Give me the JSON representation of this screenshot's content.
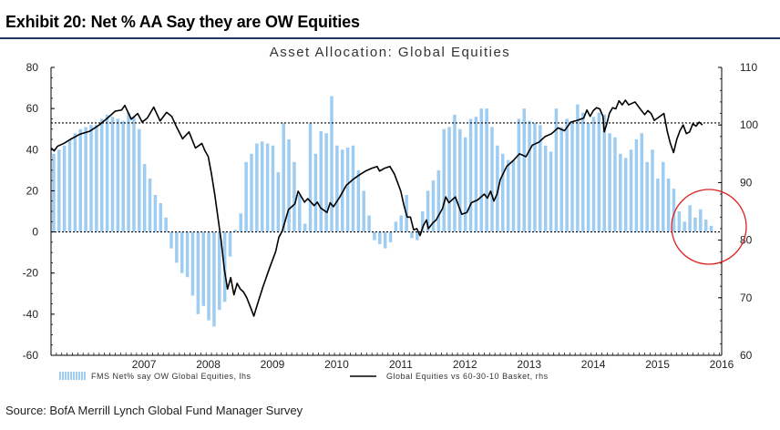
{
  "header": {
    "title": "Exhibit 20: Net % AA Say they are OW Equities"
  },
  "source": "Source: BofA Merrill Lynch Global Fund Manager Survey",
  "colors": {
    "bars": "#9fcdf2",
    "line": "#000000",
    "circle": "#e02020",
    "rule": "#1f3864"
  },
  "chart_data": {
    "type": "bar",
    "title": "Asset Allocation: Global Equities",
    "x_ticks": [
      "2007",
      "2008",
      "2009",
      "2010",
      "2011",
      "2012",
      "2013",
      "2014",
      "2015",
      "2016"
    ],
    "y_left": {
      "ylim": [
        -60,
        80
      ],
      "ticks": [
        "80",
        "60",
        "40",
        "20",
        "0",
        "-20",
        "-40",
        "-60"
      ]
    },
    "y_right": {
      "ylim": [
        60,
        110
      ],
      "ticks": [
        "110",
        "100",
        "90",
        "80",
        "70",
        "60"
      ]
    },
    "reference_lines": [
      {
        "axis": "left",
        "value": 0
      },
      {
        "axis": "left",
        "value": 53
      }
    ],
    "annotation": "circle around latest readings (early 2016)",
    "series": [
      {
        "name": "FMS Net% say OW Global Equities, lhs",
        "type": "bar",
        "axis": "left",
        "start": 2006.0,
        "step": 0.0833,
        "values": [
          38,
          40,
          42,
          45,
          48,
          50,
          51,
          52,
          52,
          55,
          57,
          56,
          55,
          54,
          58,
          56,
          50,
          33,
          26,
          18,
          14,
          7,
          -8,
          -15,
          -20,
          -22,
          -31,
          -40,
          -36,
          -43,
          -46,
          -38,
          -34,
          -12,
          1,
          9,
          34,
          38,
          43,
          44,
          43,
          42,
          29,
          53,
          45,
          34,
          18,
          4,
          53,
          38,
          49,
          48,
          66,
          42,
          40,
          41,
          42,
          30,
          20,
          8,
          -4,
          -6,
          -8,
          -5,
          5,
          8,
          18,
          -3,
          -4,
          10,
          20,
          25,
          30,
          50,
          51,
          57,
          50,
          46,
          55,
          56,
          60,
          60,
          51,
          42,
          38,
          35,
          35,
          55,
          60,
          54,
          53,
          52,
          42,
          39,
          60,
          51,
          55,
          53,
          62,
          58,
          53,
          56,
          58,
          57,
          48,
          46,
          38,
          36,
          40,
          45,
          48,
          34,
          40,
          26,
          34,
          26,
          21,
          10,
          5,
          13,
          7,
          11,
          6,
          3
        ]
      },
      {
        "name": "Global Equities vs 60-30-10 Basket, rhs",
        "type": "line",
        "axis": "right",
        "points": [
          [
            2006.0,
            96
          ],
          [
            2006.05,
            95.5
          ],
          [
            2006.1,
            96.3
          ],
          [
            2006.2,
            96.8
          ],
          [
            2006.3,
            97.5
          ],
          [
            2006.45,
            98.4
          ],
          [
            2006.6,
            98.9
          ],
          [
            2006.75,
            100.0
          ],
          [
            2006.9,
            101.4
          ],
          [
            2007.0,
            102.4
          ],
          [
            2007.1,
            102.6
          ],
          [
            2007.15,
            103.4
          ],
          [
            2007.25,
            101.0
          ],
          [
            2007.35,
            102.0
          ],
          [
            2007.42,
            100.5
          ],
          [
            2007.5,
            101.2
          ],
          [
            2007.6,
            103.1
          ],
          [
            2007.7,
            100.7
          ],
          [
            2007.8,
            102.2
          ],
          [
            2007.88,
            101.5
          ],
          [
            2007.95,
            99.8
          ],
          [
            2008.05,
            97.6
          ],
          [
            2008.15,
            98.8
          ],
          [
            2008.25,
            96.0
          ],
          [
            2008.35,
            96.8
          ],
          [
            2008.4,
            95.5
          ],
          [
            2008.45,
            94.5
          ],
          [
            2008.5,
            91.5
          ],
          [
            2008.55,
            88.0
          ],
          [
            2008.6,
            84.0
          ],
          [
            2008.65,
            80.0
          ],
          [
            2008.7,
            75.0
          ],
          [
            2008.75,
            71.5
          ],
          [
            2008.8,
            73.5
          ],
          [
            2008.85,
            70.5
          ],
          [
            2008.9,
            72.5
          ],
          [
            2008.95,
            71.5
          ],
          [
            2009.0,
            71.0
          ],
          [
            2009.05,
            70.0
          ],
          [
            2009.12,
            68.0
          ],
          [
            2009.16,
            66.8
          ],
          [
            2009.22,
            69.0
          ],
          [
            2009.3,
            71.8
          ],
          [
            2009.4,
            75.0
          ],
          [
            2009.5,
            78.0
          ],
          [
            2009.55,
            80.5
          ],
          [
            2009.6,
            81.5
          ],
          [
            2009.7,
            85.3
          ],
          [
            2009.8,
            86.3
          ],
          [
            2009.85,
            88.5
          ],
          [
            2009.95,
            86.6
          ],
          [
            2010.0,
            87.2
          ],
          [
            2010.1,
            86.0
          ],
          [
            2010.15,
            86.6
          ],
          [
            2010.2,
            85.6
          ],
          [
            2010.3,
            84.8
          ],
          [
            2010.35,
            86.5
          ],
          [
            2010.4,
            85.8
          ],
          [
            2010.5,
            87.5
          ],
          [
            2010.6,
            89.5
          ],
          [
            2010.7,
            90.5
          ],
          [
            2010.8,
            91.3
          ],
          [
            2010.9,
            92.0
          ],
          [
            2011.0,
            92.5
          ],
          [
            2011.08,
            92.8
          ],
          [
            2011.12,
            92.0
          ],
          [
            2011.2,
            92.5
          ],
          [
            2011.28,
            92.8
          ],
          [
            2011.35,
            91.5
          ],
          [
            2011.4,
            90.0
          ],
          [
            2011.45,
            88.5
          ],
          [
            2011.5,
            86.0
          ],
          [
            2011.55,
            84.0
          ],
          [
            2011.6,
            84.0
          ],
          [
            2011.65,
            81.8
          ],
          [
            2011.7,
            82.0
          ],
          [
            2011.75,
            80.8
          ],
          [
            2011.8,
            82.5
          ],
          [
            2011.85,
            83.5
          ],
          [
            2011.88,
            82.0
          ],
          [
            2011.95,
            83.0
          ],
          [
            2012.0,
            83.5
          ],
          [
            2012.1,
            85.5
          ],
          [
            2012.15,
            87.5
          ],
          [
            2012.2,
            86.5
          ],
          [
            2012.3,
            87.5
          ],
          [
            2012.35,
            86.0
          ],
          [
            2012.4,
            84.5
          ],
          [
            2012.48,
            84.8
          ],
          [
            2012.55,
            86.5
          ],
          [
            2012.65,
            87.0
          ],
          [
            2012.75,
            88.0
          ],
          [
            2012.8,
            87.3
          ],
          [
            2012.85,
            88.5
          ],
          [
            2012.9,
            86.8
          ],
          [
            2012.95,
            88.0
          ],
          [
            2013.0,
            90.5
          ],
          [
            2013.1,
            92.8
          ],
          [
            2013.2,
            93.8
          ],
          [
            2013.3,
            95.0
          ],
          [
            2013.4,
            94.5
          ],
          [
            2013.45,
            95.5
          ],
          [
            2013.5,
            96.5
          ],
          [
            2013.6,
            97.0
          ],
          [
            2013.7,
            98.0
          ],
          [
            2013.8,
            98.5
          ],
          [
            2013.9,
            99.5
          ],
          [
            2014.0,
            99.0
          ],
          [
            2014.1,
            100.5
          ],
          [
            2014.2,
            100.8
          ],
          [
            2014.3,
            101.2
          ],
          [
            2014.35,
            102.6
          ],
          [
            2014.4,
            101.5
          ],
          [
            2014.45,
            102.5
          ],
          [
            2014.5,
            103.0
          ],
          [
            2014.55,
            102.8
          ],
          [
            2014.6,
            101.5
          ],
          [
            2014.62,
            98.8
          ],
          [
            2014.66,
            100.2
          ],
          [
            2014.7,
            102.0
          ],
          [
            2014.75,
            103.0
          ],
          [
            2014.8,
            102.8
          ],
          [
            2014.85,
            104.2
          ],
          [
            2014.9,
            103.5
          ],
          [
            2014.95,
            104.3
          ],
          [
            2015.0,
            103.5
          ],
          [
            2015.1,
            104.0
          ],
          [
            2015.18,
            102.8
          ],
          [
            2015.25,
            101.8
          ],
          [
            2015.3,
            102.5
          ],
          [
            2015.35,
            102.0
          ],
          [
            2015.4,
            100.8
          ],
          [
            2015.45,
            101.2
          ],
          [
            2015.55,
            102.0
          ],
          [
            2015.6,
            99.0
          ],
          [
            2015.65,
            96.8
          ],
          [
            2015.7,
            95.2
          ],
          [
            2015.75,
            97.5
          ],
          [
            2015.8,
            99.0
          ],
          [
            2015.85,
            100.0
          ],
          [
            2015.9,
            98.5
          ],
          [
            2015.95,
            98.8
          ],
          [
            2016.0,
            100.2
          ],
          [
            2016.05,
            99.8
          ],
          [
            2016.1,
            100.5
          ],
          [
            2016.15,
            100.0
          ]
        ]
      }
    ],
    "legend": [
      {
        "label": "FMS Net% say OW Global Equities, lhs",
        "kind": "bar"
      },
      {
        "label": "Global Equities vs 60-30-10 Basket, rhs",
        "kind": "line"
      }
    ]
  }
}
